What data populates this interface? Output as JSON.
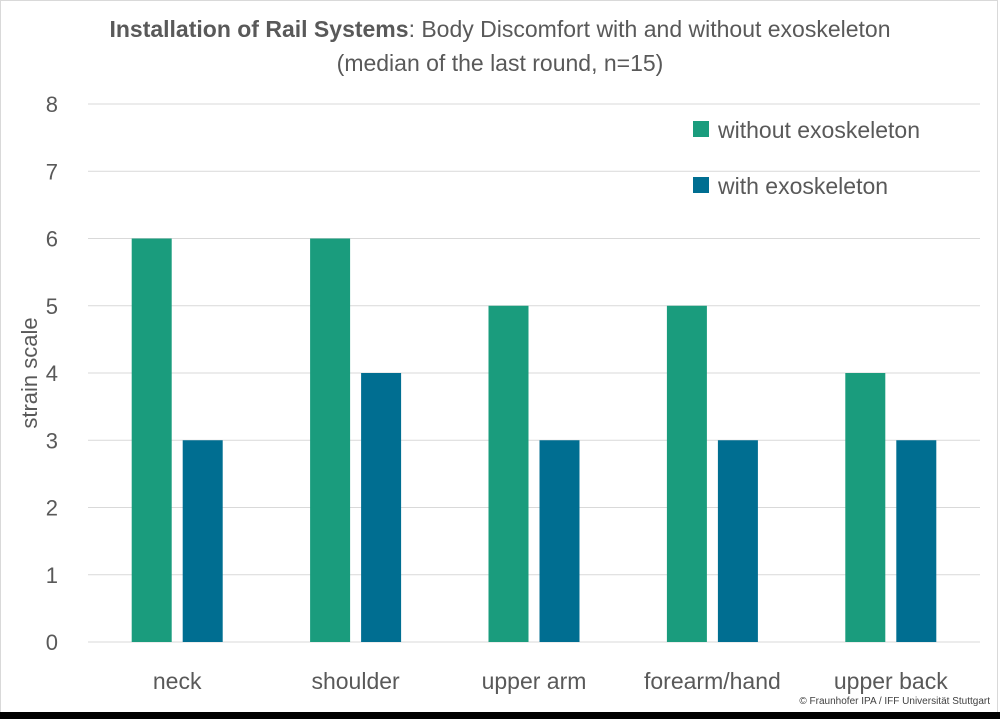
{
  "chart_data": {
    "type": "bar",
    "title_bold": "Installation of Rail Systems",
    "title_rest": ": Body Discomfort with and without exoskeleton",
    "subtitle": "(median of the last round, n=15)",
    "xlabel": "",
    "ylabel": "strain scale",
    "ylim": [
      0,
      8
    ],
    "yticks": [
      0,
      1,
      2,
      3,
      4,
      5,
      6,
      7,
      8
    ],
    "grid": true,
    "legend_position": "top-right",
    "categories": [
      "neck",
      "shoulder",
      "upper arm",
      "forearm/hand",
      "upper back"
    ],
    "series": [
      {
        "name": "without exoskeleton",
        "color": "#1a9c7d",
        "values": [
          6,
          6,
          5,
          5,
          4
        ]
      },
      {
        "name": "with exoskeleton",
        "color": "#006e91",
        "values": [
          3,
          4,
          3,
          3,
          3
        ]
      }
    ]
  },
  "copyright": "© Fraunhofer IPA / IFF Universität Stuttgart"
}
